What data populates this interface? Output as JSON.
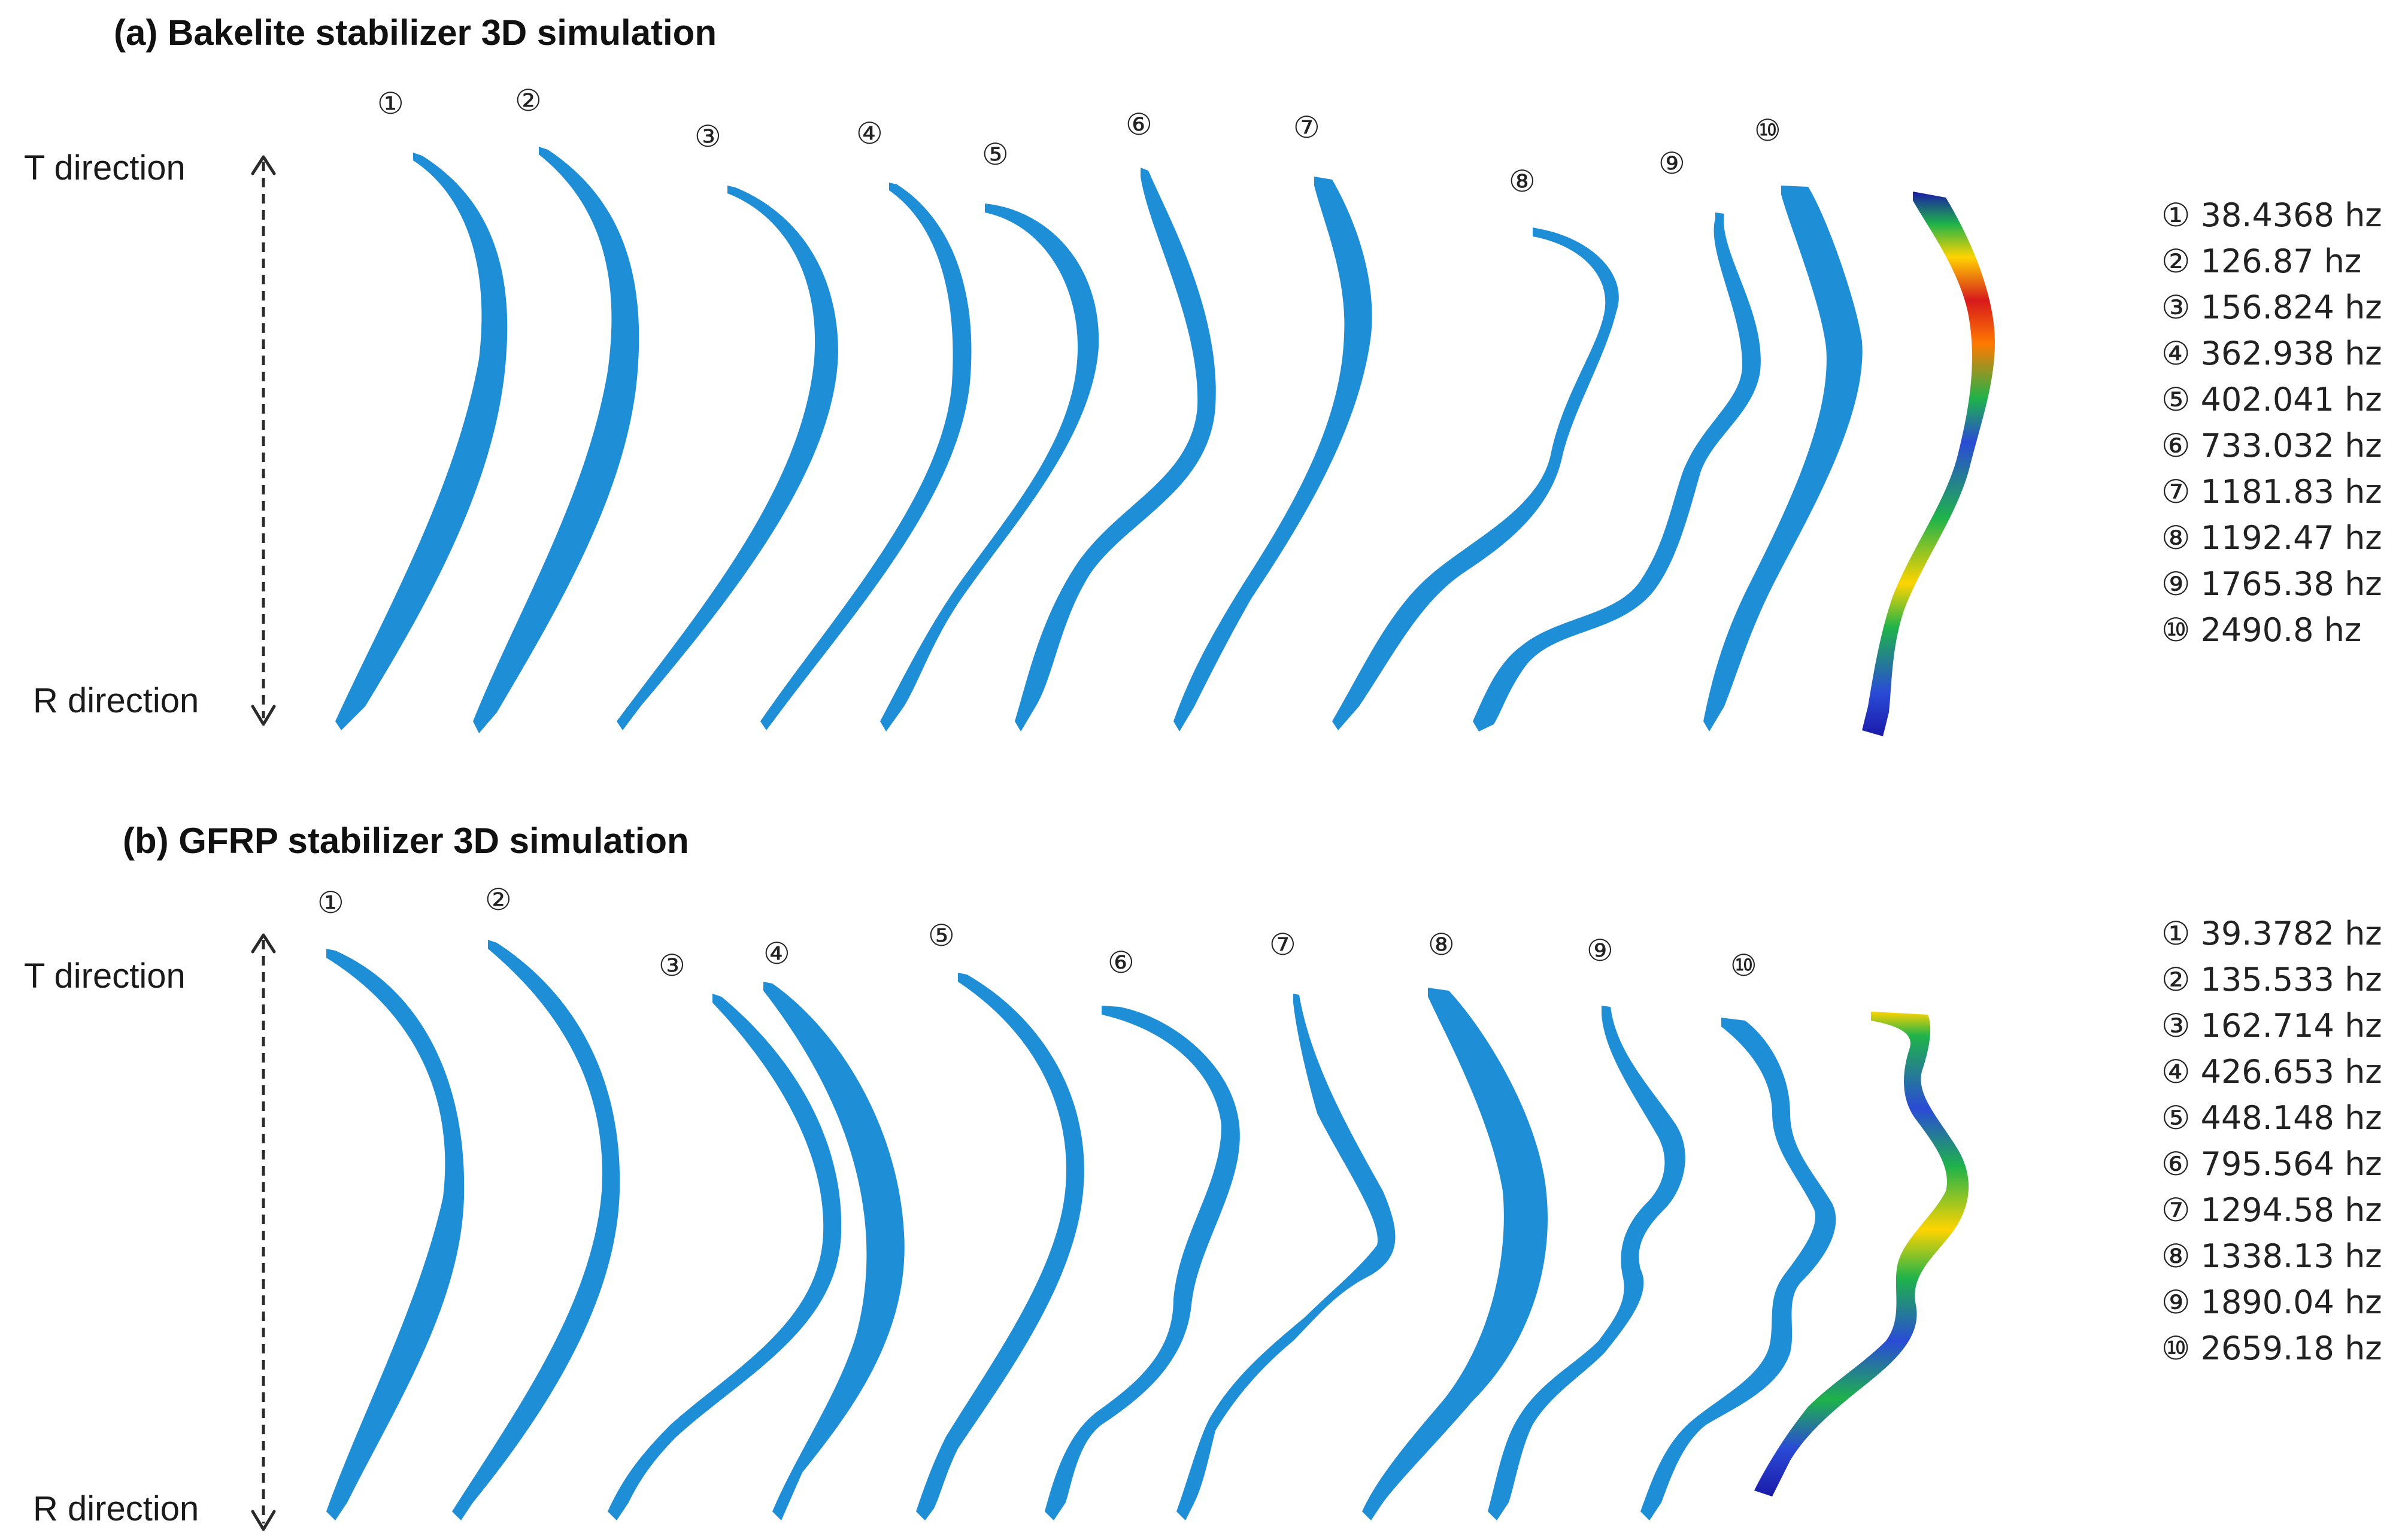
{
  "panels": [
    {
      "id": "a",
      "title": "(a) Bakelite stabilizer 3D simulation",
      "t_direction": "T direction",
      "r_direction": "R direction",
      "modes": [
        "①",
        "②",
        "③",
        "④",
        "⑤",
        "⑥",
        "⑦",
        "⑧",
        "⑨",
        "⑩"
      ],
      "frequencies": [
        {
          "mode": "①",
          "value": "38.4368 hz"
        },
        {
          "mode": "②",
          "value": "126.87 hz"
        },
        {
          "mode": "③",
          "value": "156.824 hz"
        },
        {
          "mode": "④",
          "value": "362.938 hz"
        },
        {
          "mode": "⑤",
          "value": "402.041 hz"
        },
        {
          "mode": "⑥",
          "value": "733.032 hz"
        },
        {
          "mode": "⑦",
          "value": "1181.83 hz"
        },
        {
          "mode": "⑧",
          "value": "1192.47 hz"
        },
        {
          "mode": "⑨",
          "value": "1765.38 hz"
        },
        {
          "mode": "⑩",
          "value": "2490.8 hz"
        }
      ]
    },
    {
      "id": "b",
      "title": "(b) GFRP stabilizer 3D simulation",
      "t_direction": "T direction",
      "r_direction": "R direction",
      "modes": [
        "①",
        "②",
        "③",
        "④",
        "⑤",
        "⑥",
        "⑦",
        "⑧",
        "⑨",
        "⑩"
      ],
      "frequencies": [
        {
          "mode": "①",
          "value": "39.3782 hz"
        },
        {
          "mode": "②",
          "value": "135.533 hz"
        },
        {
          "mode": "③",
          "value": "162.714 hz"
        },
        {
          "mode": "④",
          "value": "426.653 hz"
        },
        {
          "mode": "⑤",
          "value": "448.148 hz"
        },
        {
          "mode": "⑥",
          "value": "795.564 hz"
        },
        {
          "mode": "⑦",
          "value": "1294.58 hz"
        },
        {
          "mode": "⑧",
          "value": "1338.13 hz"
        },
        {
          "mode": "⑨",
          "value": "1890.04 hz"
        },
        {
          "mode": "⑩",
          "value": "2659.18 hz"
        }
      ]
    }
  ],
  "colors": {
    "blade": "#1e8fd6",
    "contour_high": "#d7191c",
    "contour_mid": "#ffd400",
    "contour_green": "#1fb34a",
    "contour_low": "#1a1aa8"
  }
}
